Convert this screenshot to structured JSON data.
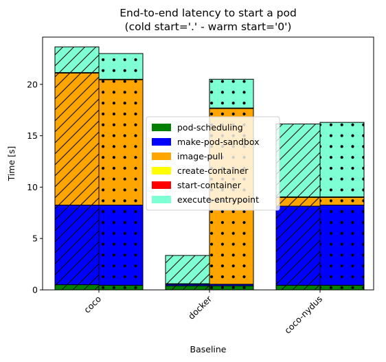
{
  "chart_data": {
    "type": "bar",
    "title_lines": [
      "End-to-end latency to start a pod",
      "(cold start='.' - warm start='0')"
    ],
    "xlabel": "Baseline",
    "ylabel": "Time [s]",
    "ylim": [
      0,
      24.6
    ],
    "yticks": [
      0,
      5,
      10,
      15,
      20
    ],
    "categories": [
      "coco",
      "docker",
      "coco-nydus"
    ],
    "bar_variants": [
      {
        "name": "cold",
        "hatch": "dots"
      },
      {
        "name": "warm",
        "hatch": "diagonal"
      }
    ],
    "series": [
      {
        "name": "pod-scheduling",
        "color": "#008000",
        "cold": [
          0.45,
          0.4,
          0.45
        ],
        "warm": [
          0.5,
          0.4,
          0.45
        ]
      },
      {
        "name": "make-pod-sandbox",
        "color": "#0000ff",
        "cold": [
          7.8,
          0.15,
          7.8
        ],
        "warm": [
          7.75,
          0.15,
          7.7
        ]
      },
      {
        "name": "image-pull",
        "color": "#ffa500",
        "cold": [
          12.2,
          17.1,
          0.75
        ],
        "warm": [
          12.85,
          0.0,
          0.85
        ]
      },
      {
        "name": "create-container",
        "color": "#ffff00",
        "cold": [
          0.0,
          0.0,
          0.0
        ],
        "warm": [
          0.0,
          0.0,
          0.0
        ]
      },
      {
        "name": "start-container",
        "color": "#ff0000",
        "cold": [
          0.05,
          0.05,
          0.05
        ],
        "warm": [
          0.05,
          0.05,
          0.05
        ]
      },
      {
        "name": "execute-entrypoint",
        "color": "#7fffd4",
        "cold": [
          2.5,
          2.8,
          7.25
        ],
        "warm": [
          2.5,
          2.75,
          7.1
        ]
      }
    ],
    "legend_position": "center",
    "grid": false
  }
}
